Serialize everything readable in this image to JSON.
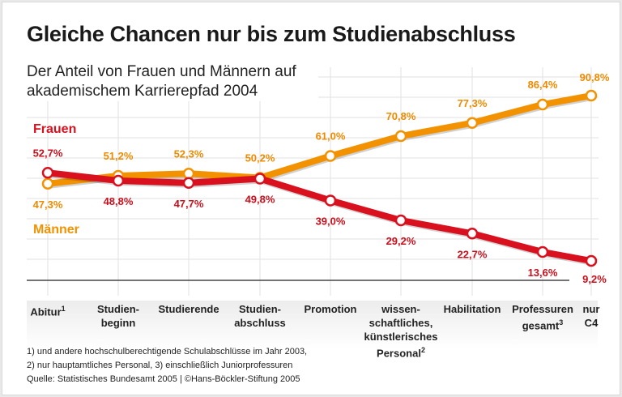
{
  "chart_data": {
    "type": "line",
    "title": "Gleiche Chancen nur bis zum Studienabschluss",
    "subtitle": "Der Anteil von Frauen und Männern auf akademischem Karrierepfad 2004",
    "categories": [
      {
        "label": "Abitur",
        "sup": "1"
      },
      {
        "label": "Studien-\nbeginn",
        "sup": ""
      },
      {
        "label": "Studierende",
        "sup": ""
      },
      {
        "label": "Studien-\nabschluss",
        "sup": ""
      },
      {
        "label": "Promotion",
        "sup": ""
      },
      {
        "label": "wissen-\nschaftliches,\nkünstlerisches\nPersonal",
        "sup": "2"
      },
      {
        "label": "Habilitation",
        "sup": ""
      },
      {
        "label": "Professuren\ngesamt",
        "sup": "3"
      },
      {
        "label": "nur\nC4",
        "sup": ""
      }
    ],
    "series": [
      {
        "name": "Frauen",
        "color": "#d9101d",
        "values": [
          52.7,
          48.8,
          47.7,
          49.8,
          39.0,
          29.2,
          22.7,
          13.6,
          9.2
        ],
        "labels": [
          "52,7%",
          "48,8%",
          "47,7%",
          "49,8%",
          "39,0%",
          "29,2%",
          "22,7%",
          "13,6%",
          "9,2%"
        ]
      },
      {
        "name": "Männer",
        "color": "#f39200",
        "values": [
          47.3,
          51.2,
          52.3,
          50.2,
          61.0,
          70.8,
          77.3,
          86.4,
          90.8
        ],
        "labels": [
          "47,3%",
          "51,2%",
          "52,3%",
          "50,2%",
          "61,0%",
          "70,8%",
          "77,3%",
          "86,4%",
          "90,8%"
        ]
      }
    ],
    "ylim": [
      0,
      100
    ],
    "grid": true,
    "notes": [
      "1) und andere hochschulberechtigende Schulabschlüsse im Jahr 2003,",
      "2) nur hauptamtliches Personal, 3) einschließlich Juniorprofessuren",
      "Quelle: Statistisches Bundesamt 2005 | ©Hans-Böckler-Stiftung 2005"
    ]
  }
}
